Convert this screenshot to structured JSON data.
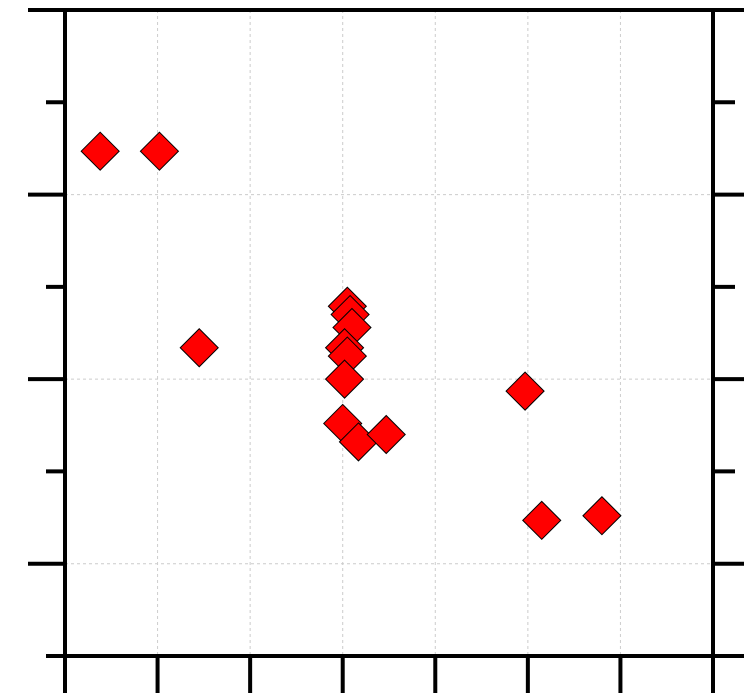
{
  "chart_data": {
    "type": "scatter",
    "title": "",
    "xlabel": "",
    "ylabel": "",
    "xlim": [
      0,
      7
    ],
    "ylim": [
      0,
      7
    ],
    "x_major_ticks": [
      0,
      1,
      2,
      3,
      4,
      5,
      6,
      7
    ],
    "y_major_ticks": [
      1,
      3,
      5,
      7
    ],
    "y_minor_ticks": [
      2,
      4,
      6
    ],
    "grid": true,
    "marker": "diamond",
    "colors": {
      "marker_fill": "#ff0000",
      "marker_edge": "#000000",
      "grid": "#cccccc",
      "axes": "#000000"
    },
    "series": [
      {
        "points": [
          {
            "x": 0.38,
            "y": 5.47
          },
          {
            "x": 1.02,
            "y": 5.47
          },
          {
            "x": 1.45,
            "y": 3.34
          },
          {
            "x": 3.05,
            "y": 3.79
          },
          {
            "x": 3.08,
            "y": 3.7
          },
          {
            "x": 3.1,
            "y": 3.56
          },
          {
            "x": 3.02,
            "y": 3.34
          },
          {
            "x": 3.05,
            "y": 3.25
          },
          {
            "x": 3.02,
            "y": 3.0
          },
          {
            "x": 3.0,
            "y": 2.52
          },
          {
            "x": 3.17,
            "y": 2.32
          },
          {
            "x": 3.47,
            "y": 2.4
          },
          {
            "x": 4.97,
            "y": 2.87
          },
          {
            "x": 5.15,
            "y": 1.47
          },
          {
            "x": 5.8,
            "y": 1.52
          }
        ]
      }
    ]
  }
}
